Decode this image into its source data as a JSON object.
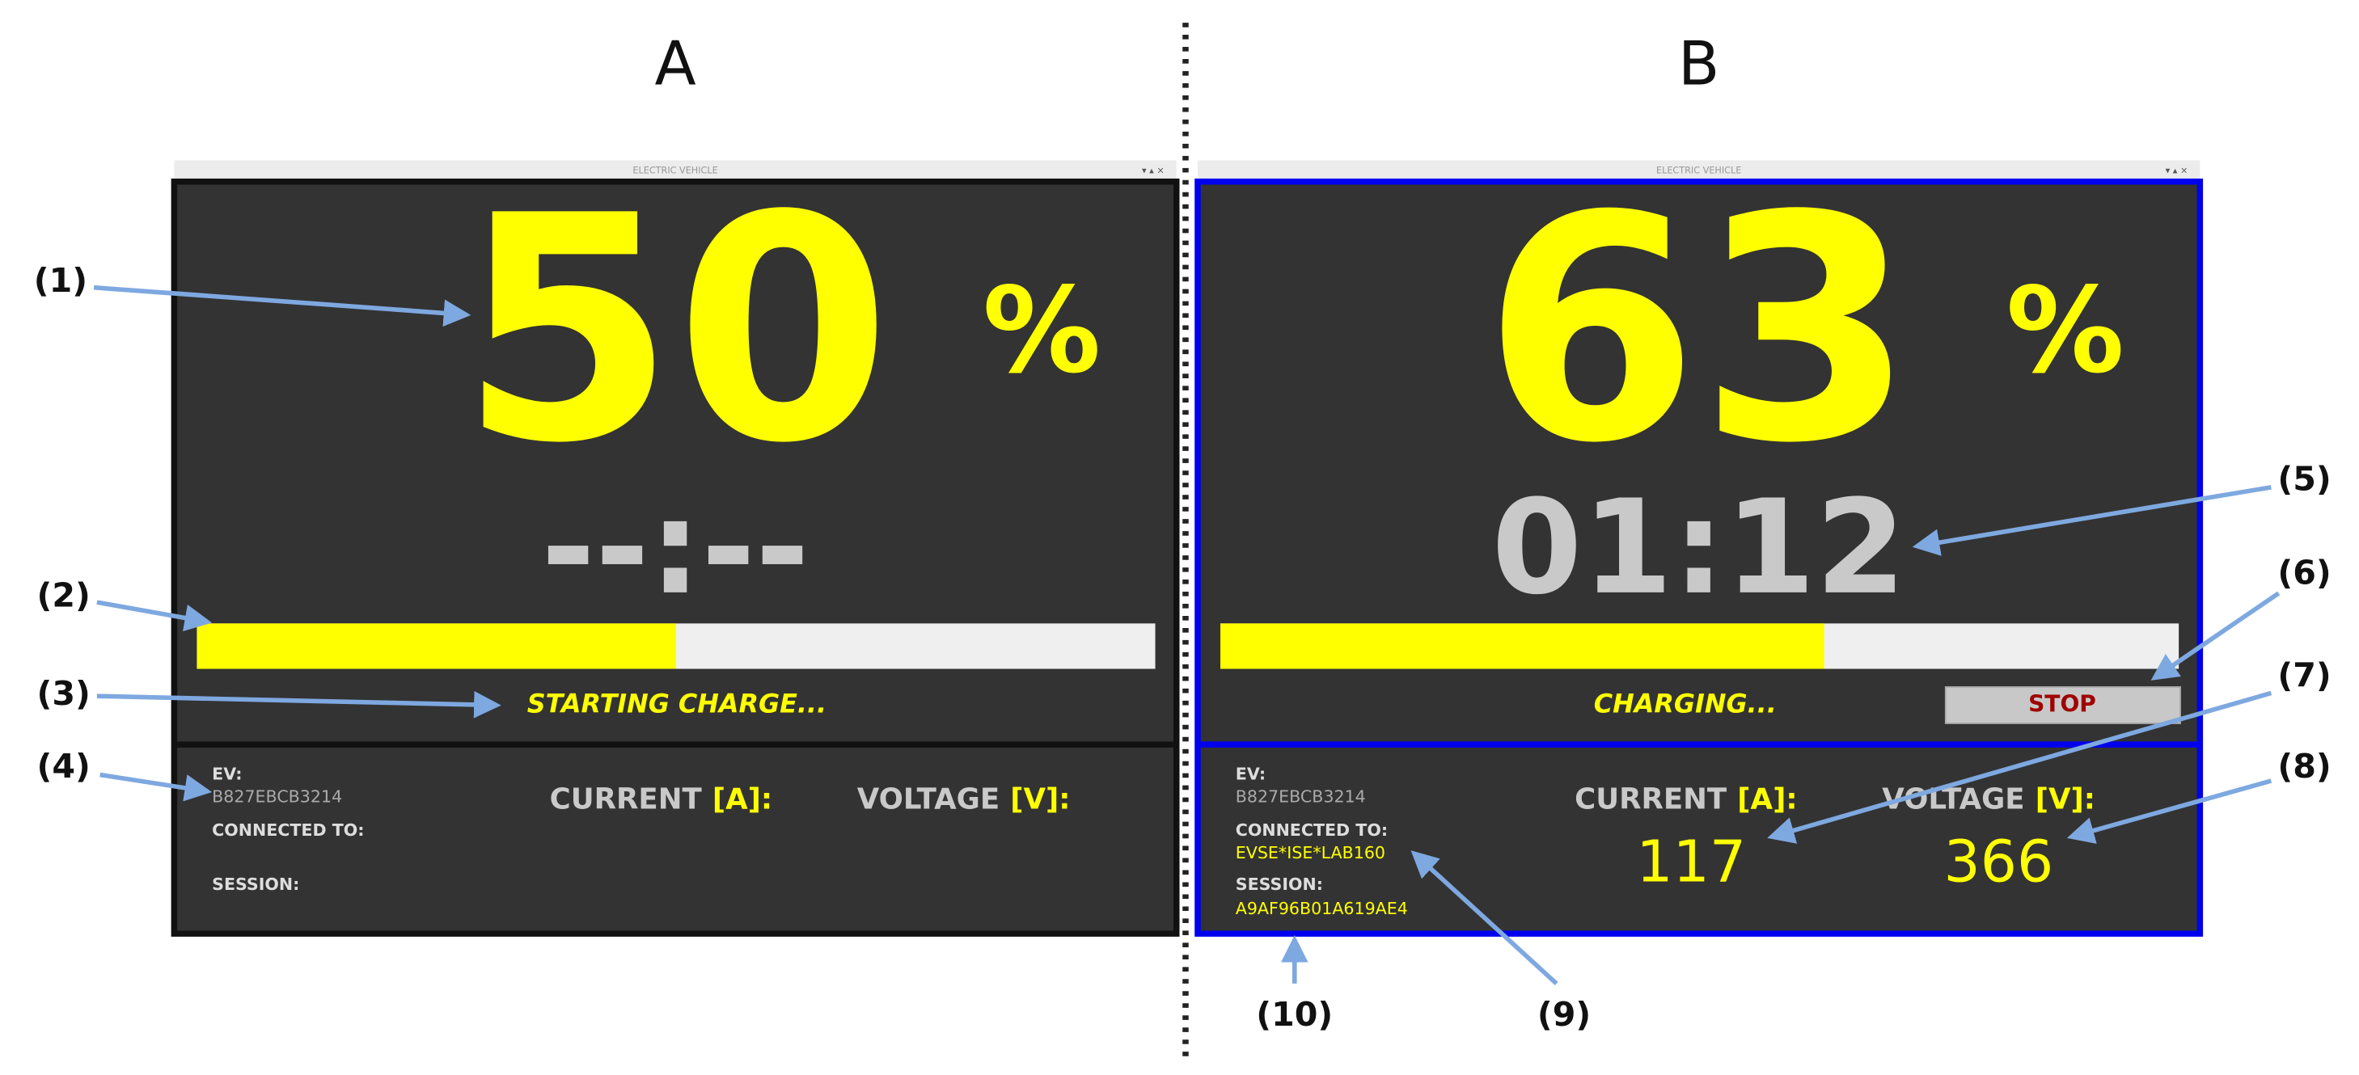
{
  "panels": [
    {
      "label": "A",
      "window_title": "ELECTRIC VEHICLE",
      "percent": 50,
      "percent_sign": "%",
      "bar_range": [
        0,
        100
      ],
      "time": "--:--",
      "status": "STARTING CHARGE...",
      "ev_label": "EV:",
      "ev_id": "B827EBCB3214",
      "connected_label": "CONNECTED TO:",
      "session_label": "SESSION:",
      "current_label": "CURRENT",
      "current_unit": "[A]:",
      "voltage_label": "VOLTAGE",
      "voltage_unit": "[V]:"
    },
    {
      "label": "B",
      "window_title": "ELECTRIC VEHICLE",
      "percent": 63,
      "percent_sign": "%",
      "bar_range": [
        0,
        100
      ],
      "time": "01:12",
      "status": "CHARGING...",
      "stop_button": "STOP",
      "ev_label": "EV:",
      "ev_id": "B827EBCB3214",
      "connected_label": "CONNECTED TO:",
      "connected_value": "EVSE*ISE*LAB160",
      "session_label": "SESSION:",
      "session_value": "A9AF96B01A619AE4",
      "current_label": "CURRENT",
      "current_unit": "[A]:",
      "voltage_label": "VOLTAGE",
      "voltage_unit": "[V]:",
      "current_value": "117",
      "voltage_value": "366"
    }
  ],
  "callouts": [
    "(1)",
    "(2)",
    "(3)",
    "(4)",
    "(5)",
    "(6)",
    "(7)",
    "(8)",
    "(9)",
    "(10)"
  ]
}
